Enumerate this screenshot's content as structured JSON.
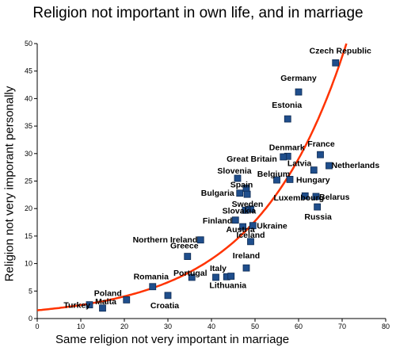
{
  "chart_data": {
    "type": "scatter",
    "title": "Religion not important in own life, and in marriage",
    "xlabel": "Same religion not very important in marriage",
    "ylabel": "Religion not very imporant personally",
    "xlim": [
      0,
      80
    ],
    "ylim": [
      0,
      50
    ],
    "xticks": [
      "0",
      "10",
      "20",
      "30",
      "40",
      "50",
      "60",
      "70",
      "80"
    ],
    "yticks": [
      "0",
      "5",
      "10",
      "15",
      "20",
      "25",
      "30",
      "35",
      "40",
      "45",
      "50"
    ],
    "grid": false,
    "marker_color": "#1f4e8c",
    "trendline_color": "#ff3300",
    "trendline": {
      "type": "exponential",
      "a": 1.5,
      "b": 0.0494
    },
    "points": [
      {
        "label": "Czech Republic",
        "x": 68.5,
        "y": 46.5
      },
      {
        "label": "Germany",
        "x": 60,
        "y": 41.2
      },
      {
        "label": "Estonia",
        "x": 57.5,
        "y": 36.3
      },
      {
        "label": "France",
        "x": 65,
        "y": 29.8
      },
      {
        "label": "Denmark",
        "x": 57.5,
        "y": 29.5
      },
      {
        "label": "Great Britain",
        "x": 56.5,
        "y": 29.4
      },
      {
        "label": "Netherlands",
        "x": 67,
        "y": 27.8
      },
      {
        "label": "Latvia",
        "x": 63.5,
        "y": 27
      },
      {
        "label": "Slovenia",
        "x": 46,
        "y": 25.5
      },
      {
        "label": "Belgium",
        "x": 55,
        "y": 25.2
      },
      {
        "label": "Hungary",
        "x": 58,
        "y": 25.3
      },
      {
        "label": "Spain",
        "x": 48,
        "y": 23.7
      },
      {
        "label": "Bulgaria",
        "x": 46.5,
        "y": 22.8
      },
      {
        "label": "",
        "x": 48.2,
        "y": 22.6
      },
      {
        "label": "Luxembourg",
        "x": 61.5,
        "y": 22.3
      },
      {
        "label": "Belarus",
        "x": 64,
        "y": 22.2
      },
      {
        "label": "Russia",
        "x": 64.3,
        "y": 20.3
      },
      {
        "label": "Sweden",
        "x": 49,
        "y": 19.9
      },
      {
        "label": "Slovakia",
        "x": 47.8,
        "y": 19.7
      },
      {
        "label": "Finland",
        "x": 45.5,
        "y": 17.9
      },
      {
        "label": "Austria",
        "x": 47.2,
        "y": 16.7
      },
      {
        "label": "Ukraine",
        "x": 49.5,
        "y": 16.9
      },
      {
        "label": "Iceland",
        "x": 49,
        "y": 14
      },
      {
        "label": "Northern Ireland",
        "x": 37.5,
        "y": 14.3
      },
      {
        "label": "Greece",
        "x": 34.5,
        "y": 11.3
      },
      {
        "label": "Ireland",
        "x": 48,
        "y": 9.2
      },
      {
        "label": "Portugal",
        "x": 35.5,
        "y": 7.5
      },
      {
        "label": "Italy",
        "x": 41,
        "y": 7.5
      },
      {
        "label": "",
        "x": 43.5,
        "y": 7.6
      },
      {
        "label": "Lithuania",
        "x": 44.5,
        "y": 7.7
      },
      {
        "label": "Romania",
        "x": 26.5,
        "y": 5.8
      },
      {
        "label": "Croatia",
        "x": 30,
        "y": 4.2
      },
      {
        "label": "Poland",
        "x": 20.5,
        "y": 3.4
      },
      {
        "label": "Malta",
        "x": 15,
        "y": 1.9
      },
      {
        "label": "Turkey",
        "x": 12,
        "y": 2.5
      }
    ]
  }
}
